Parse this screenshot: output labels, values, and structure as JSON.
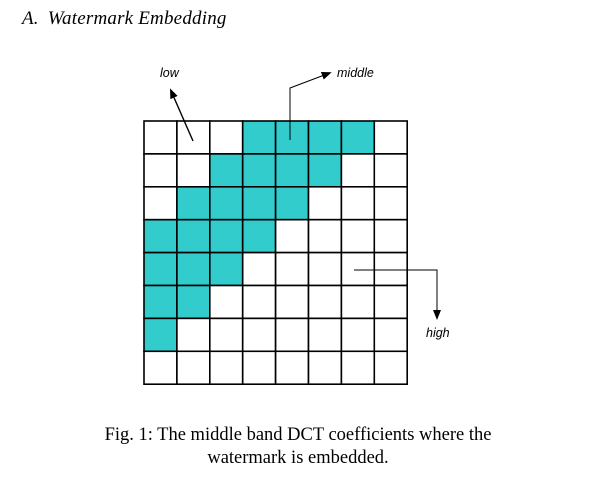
{
  "section": {
    "number": "A.",
    "title": "Watermark Embedding"
  },
  "figure": {
    "labels": {
      "low": "low",
      "middle": "middle",
      "high": "high"
    },
    "grid": {
      "rows": 8,
      "cols": 8,
      "highlighted_cells": [
        [
          0,
          3
        ],
        [
          0,
          4
        ],
        [
          0,
          5
        ],
        [
          0,
          6
        ],
        [
          1,
          2
        ],
        [
          1,
          3
        ],
        [
          1,
          4
        ],
        [
          1,
          5
        ],
        [
          2,
          1
        ],
        [
          2,
          2
        ],
        [
          2,
          3
        ],
        [
          2,
          4
        ],
        [
          3,
          0
        ],
        [
          3,
          1
        ],
        [
          3,
          2
        ],
        [
          3,
          3
        ],
        [
          4,
          0
        ],
        [
          4,
          1
        ],
        [
          4,
          2
        ],
        [
          5,
          0
        ],
        [
          5,
          1
        ],
        [
          6,
          0
        ]
      ],
      "highlight_color": "#33cccc",
      "cell_color": "#ffffff",
      "line_color": "#000000"
    },
    "caption_line1": "Fig. 1: The middle band DCT coefficients where the",
    "caption_line2": "watermark is embedded."
  }
}
